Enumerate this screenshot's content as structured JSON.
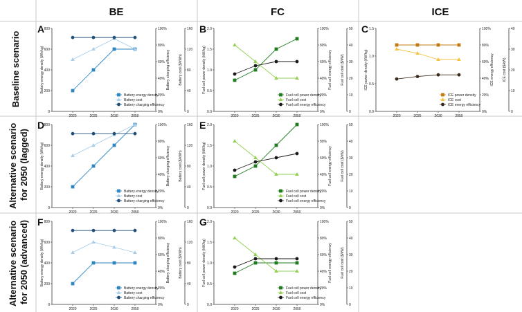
{
  "headers": {
    "columns": [
      "BE",
      "FC",
      "ICE"
    ],
    "rows": [
      "Baseline scenario",
      "Alternative scenario for 2050 (lagged)",
      "Alternative scenario for 2050 (advanced)"
    ]
  },
  "colors": {
    "be_dark": "#2e86c1",
    "be_light": "#a9cde8",
    "be_navy": "#1f4e79",
    "fc_dark": "#1e7b1e",
    "fc_light": "#92d050",
    "fc_black": "#1a1a1a",
    "ice_dark": "#c07a12",
    "ice_light": "#f5c242",
    "ice_black": "#3b2a1a"
  },
  "chart_data": [
    {
      "panel": "A",
      "type": "line",
      "group": "BE",
      "scenario": "Baseline scenario",
      "categories": [
        "2020",
        "2025",
        "2030",
        "2050"
      ],
      "left_axis": {
        "label": "Battery energy density (Wh/kg)",
        "ylim": [
          0,
          800
        ],
        "ticks": [
          "0",
          "200",
          "400",
          "600",
          "800"
        ]
      },
      "right_axes": [
        {
          "label": "Battery charging efficiency",
          "ylim": [
            0,
            100
          ],
          "ticks": [
            "0%",
            "20%",
            "40%",
            "60%",
            "80%",
            "100%"
          ]
        },
        {
          "label": "Battery cost ($/kWh)",
          "ylim": [
            0,
            160
          ],
          "ticks": [
            "0",
            "40",
            "80",
            "120",
            "160"
          ]
        }
      ],
      "series": [
        {
          "name": "Battery energy density",
          "axis": 0,
          "marker": "square",
          "color": "#2e86c1",
          "values": [
            200,
            400,
            600,
            600
          ]
        },
        {
          "name": "Battery cost",
          "axis": 2,
          "marker": "triangle",
          "color": "#a9cde8",
          "values": [
            100,
            120,
            140,
            120
          ]
        },
        {
          "name": "Battery charging efficiency",
          "axis": 1,
          "marker": "circle",
          "color": "#1f4e79",
          "values": [
            89,
            89,
            89,
            89
          ]
        }
      ]
    },
    {
      "panel": "B",
      "type": "line",
      "group": "FC",
      "scenario": "Baseline scenario",
      "categories": [
        "2020",
        "2025",
        "2030",
        "2050"
      ],
      "left_axis": {
        "label": "Fuel cell power density (kW/kg)",
        "ylim": [
          0,
          2.0
        ],
        "ticks": [
          "0.0",
          "0.5",
          "1.0",
          "1.5",
          "2.0"
        ]
      },
      "right_axes": [
        {
          "label": "Fuel cell energy efficiency",
          "ylim": [
            0,
            100
          ],
          "ticks": [
            "0%",
            "20%",
            "40%",
            "60%",
            "80%",
            "100%"
          ]
        },
        {
          "label": "Fuel cell cost ($/kW)",
          "ylim": [
            0,
            50
          ],
          "ticks": [
            "0",
            "10",
            "20",
            "30",
            "40",
            "50"
          ]
        }
      ],
      "series": [
        {
          "name": "Fuel cell power density",
          "axis": 0,
          "marker": "square",
          "color": "#1e7b1e",
          "values": [
            0.75,
            1.0,
            1.5,
            1.75
          ]
        },
        {
          "name": "Fuel cell cost",
          "axis": 2,
          "marker": "triangle",
          "color": "#92d050",
          "values": [
            40,
            30,
            20,
            20
          ]
        },
        {
          "name": "Fuel cell energy efficiency",
          "axis": 1,
          "marker": "circle",
          "color": "#1a1a1a",
          "values": [
            45,
            55,
            60,
            60
          ]
        }
      ]
    },
    {
      "panel": "C",
      "type": "line",
      "group": "ICE",
      "scenario": "Baseline scenario",
      "categories": [
        "2020",
        "2025",
        "2030",
        "2050"
      ],
      "left_axis": {
        "label": "ICE power density (kW/kg)",
        "ylim": [
          0,
          1.5
        ],
        "ticks": [
          "0.0",
          "0.5",
          "1.0",
          "1.5"
        ]
      },
      "right_axes": [
        {
          "label": "ICE energy efficiency",
          "ylim": [
            0,
            100
          ],
          "ticks": [
            "0%",
            "20%",
            "40%",
            "60%",
            "80%",
            "100%"
          ]
        },
        {
          "label": "ICE cost ($/kW)",
          "ylim": [
            0,
            40
          ],
          "ticks": [
            "0",
            "10",
            "20",
            "30",
            "40"
          ]
        }
      ],
      "series": [
        {
          "name": "ICE power density",
          "axis": 0,
          "marker": "square",
          "color": "#c07a12",
          "values": [
            1.2,
            1.2,
            1.2,
            1.2
          ]
        },
        {
          "name": "ICE cost",
          "axis": 2,
          "marker": "triangle",
          "color": "#f5c242",
          "values": [
            30,
            28,
            25,
            25
          ]
        },
        {
          "name": "ICE energy efficiency",
          "axis": 1,
          "marker": "circle",
          "color": "#3b2a1a",
          "values": [
            39,
            42,
            44,
            44
          ]
        }
      ]
    },
    {
      "panel": "D",
      "type": "line",
      "group": "BE",
      "scenario": "Alternative scenario for 2050 (lagged)",
      "categories": [
        "2020",
        "2025",
        "2030",
        "2050"
      ],
      "left_axis": {
        "label": "Battery energy density (Wh/kg)",
        "ylim": [
          0,
          800
        ],
        "ticks": [
          "0",
          "200",
          "400",
          "600",
          "800"
        ]
      },
      "right_axes": [
        {
          "label": "Battery charging efficiency",
          "ylim": [
            0,
            100
          ],
          "ticks": [
            "0%",
            "20%",
            "40%",
            "60%",
            "80%",
            "100%"
          ]
        },
        {
          "label": "Battery cost ($/kWh)",
          "ylim": [
            0,
            160
          ],
          "ticks": [
            "0",
            "40",
            "80",
            "120",
            "160"
          ]
        }
      ],
      "series": [
        {
          "name": "Battery energy density",
          "axis": 0,
          "marker": "square",
          "color": "#2e86c1",
          "values": [
            200,
            400,
            600,
            800
          ]
        },
        {
          "name": "Battery cost",
          "axis": 2,
          "marker": "triangle",
          "color": "#a9cde8",
          "values": [
            100,
            120,
            140,
            160
          ]
        },
        {
          "name": "Battery charging efficiency",
          "axis": 1,
          "marker": "circle",
          "color": "#1f4e79",
          "values": [
            89,
            89,
            89,
            89
          ]
        }
      ]
    },
    {
      "panel": "E",
      "type": "line",
      "group": "FC",
      "scenario": "Alternative scenario for 2050 (lagged)",
      "categories": [
        "2020",
        "2025",
        "2030",
        "2050"
      ],
      "left_axis": {
        "label": "Fuel cell power density (kW/kg)",
        "ylim": [
          0,
          2.0
        ],
        "ticks": [
          "0.0",
          "0.5",
          "1.0",
          "1.5",
          "2.0"
        ]
      },
      "right_axes": [
        {
          "label": "Fuel cell energy efficiency",
          "ylim": [
            0,
            100
          ],
          "ticks": [
            "0%",
            "20%",
            "40%",
            "60%",
            "80%",
            "100%"
          ]
        },
        {
          "label": "Fuel cell cost ($/kW)",
          "ylim": [
            0,
            50
          ],
          "ticks": [
            "0",
            "10",
            "20",
            "30",
            "40",
            "50"
          ]
        }
      ],
      "series": [
        {
          "name": "Fuel cell power density",
          "axis": 0,
          "marker": "square",
          "color": "#1e7b1e",
          "values": [
            0.75,
            1.0,
            1.5,
            2.0
          ]
        },
        {
          "name": "Fuel cell cost",
          "axis": 2,
          "marker": "triangle",
          "color": "#92d050",
          "values": [
            40,
            30,
            20,
            20
          ]
        },
        {
          "name": "Fuel cell energy efficiency",
          "axis": 1,
          "marker": "circle",
          "color": "#1a1a1a",
          "values": [
            45,
            55,
            60,
            65
          ]
        }
      ]
    },
    {
      "panel": "F",
      "type": "line",
      "group": "BE",
      "scenario": "Alternative scenario for 2050 (advanced)",
      "categories": [
        "2020",
        "2025",
        "2030",
        "2050"
      ],
      "left_axis": {
        "label": "Battery energy density (Wh/kg)",
        "ylim": [
          0,
          800
        ],
        "ticks": [
          "0",
          "200",
          "400",
          "600",
          "800"
        ]
      },
      "right_axes": [
        {
          "label": "Battery charging efficiency",
          "ylim": [
            0,
            100
          ],
          "ticks": [
            "0%",
            "20%",
            "40%",
            "60%",
            "80%",
            "100%"
          ]
        },
        {
          "label": "Battery cost ($/kWh)",
          "ylim": [
            0,
            160
          ],
          "ticks": [
            "0",
            "40",
            "80",
            "120",
            "160"
          ]
        }
      ],
      "series": [
        {
          "name": "Battery energy density",
          "axis": 0,
          "marker": "square",
          "color": "#2e86c1",
          "values": [
            200,
            400,
            400,
            400
          ]
        },
        {
          "name": "Battery cost",
          "axis": 2,
          "marker": "triangle",
          "color": "#a9cde8",
          "values": [
            100,
            120,
            110,
            100
          ]
        },
        {
          "name": "Battery charging efficiency",
          "axis": 1,
          "marker": "circle",
          "color": "#1f4e79",
          "values": [
            89,
            89,
            89,
            89
          ]
        }
      ]
    },
    {
      "panel": "G",
      "type": "line",
      "group": "FC",
      "scenario": "Alternative scenario for 2050 (advanced)",
      "categories": [
        "2020",
        "2025",
        "2030",
        "2050"
      ],
      "left_axis": {
        "label": "Fuel cell power density (kW/kg)",
        "ylim": [
          0,
          2.0
        ],
        "ticks": [
          "0.0",
          "0.5",
          "1.0",
          "1.5",
          "2.0"
        ]
      },
      "right_axes": [
        {
          "label": "Fuel cell energy efficiency",
          "ylim": [
            0,
            100
          ],
          "ticks": [
            "0%",
            "20%",
            "40%",
            "60%",
            "80%",
            "100%"
          ]
        },
        {
          "label": "Fuel cell cost ($/kW)",
          "ylim": [
            0,
            50
          ],
          "ticks": [
            "0",
            "10",
            "20",
            "30",
            "40",
            "50"
          ]
        }
      ],
      "series": [
        {
          "name": "Fuel cell power density",
          "axis": 0,
          "marker": "square",
          "color": "#1e7b1e",
          "values": [
            0.75,
            1.0,
            1.0,
            1.0
          ]
        },
        {
          "name": "Fuel cell cost",
          "axis": 2,
          "marker": "triangle",
          "color": "#92d050",
          "values": [
            40,
            30,
            20,
            20
          ]
        },
        {
          "name": "Fuel cell energy efficiency",
          "axis": 1,
          "marker": "circle",
          "color": "#1a1a1a",
          "values": [
            45,
            55,
            55,
            55
          ]
        }
      ]
    }
  ]
}
